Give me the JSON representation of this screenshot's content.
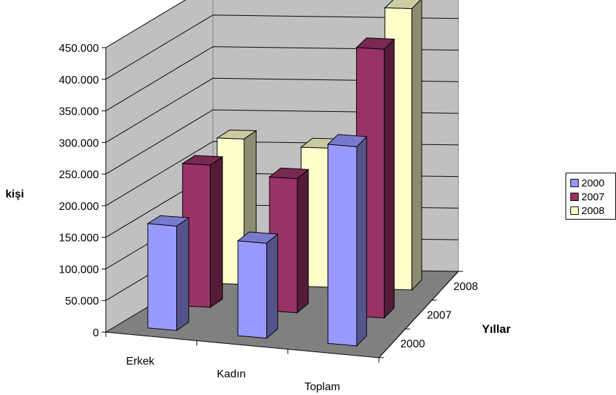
{
  "chart_data": {
    "type": "bar",
    "title": "",
    "ylabel": "kişi",
    "zlabel": "Yıllar",
    "categories": [
      "Erkek",
      "Kadın",
      "Toplam"
    ],
    "series": [
      {
        "name": "2000",
        "color": "#9999FF",
        "values": [
          165000,
          150000,
          315000
        ]
      },
      {
        "name": "2007",
        "color": "#993366",
        "values": [
          225000,
          212000,
          425000
        ]
      },
      {
        "name": "2008",
        "color": "#FFFFCC",
        "values": [
          230000,
          220000,
          445000
        ]
      }
    ],
    "yticks": [
      "0",
      "50.000",
      "100.000",
      "150.000",
      "200.000",
      "250.000",
      "300.000",
      "350.000",
      "400.000",
      "450.000"
    ],
    "ylim": [
      0,
      450000
    ],
    "depth_labels": [
      "2000",
      "2007",
      "2008"
    ],
    "legend": "right",
    "grid": true,
    "three_d": true
  }
}
